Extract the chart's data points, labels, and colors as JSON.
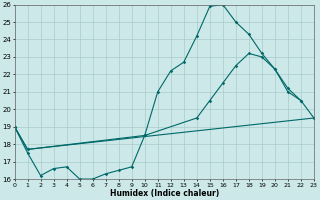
{
  "xlabel": "Humidex (Indice chaleur)",
  "bg_color": "#cce8e8",
  "grid_color": "#aacccc",
  "line_color": "#006868",
  "ylim": [
    16,
    26
  ],
  "xlim": [
    0,
    23
  ],
  "yticks": [
    16,
    17,
    18,
    19,
    20,
    21,
    22,
    23,
    24,
    25,
    26
  ],
  "xticks": [
    0,
    1,
    2,
    3,
    4,
    5,
    6,
    7,
    8,
    9,
    10,
    11,
    12,
    13,
    14,
    15,
    16,
    17,
    18,
    19,
    20,
    21,
    22,
    23
  ],
  "line1_x": [
    0,
    1,
    2,
    3,
    4,
    5,
    6,
    7,
    8,
    9,
    10,
    11,
    12,
    13,
    14,
    15,
    16,
    17,
    18,
    19,
    20,
    21,
    22
  ],
  "line1_y": [
    19.0,
    17.5,
    16.2,
    16.6,
    16.7,
    16.0,
    16.0,
    16.3,
    16.5,
    16.7,
    18.5,
    21.0,
    22.2,
    22.7,
    24.2,
    25.9,
    26.0,
    25.0,
    24.3,
    23.2,
    22.3,
    21.0,
    20.5
  ],
  "line2_x": [
    0,
    1,
    23
  ],
  "line2_y": [
    19.0,
    17.7,
    19.5
  ],
  "line3_x": [
    0,
    1,
    10,
    14,
    15,
    16,
    17,
    18,
    19,
    20,
    21,
    22,
    23
  ],
  "line3_y": [
    19.0,
    17.7,
    18.5,
    19.5,
    20.5,
    21.5,
    22.5,
    23.2,
    23.0,
    22.3,
    21.2,
    20.5,
    19.5
  ]
}
